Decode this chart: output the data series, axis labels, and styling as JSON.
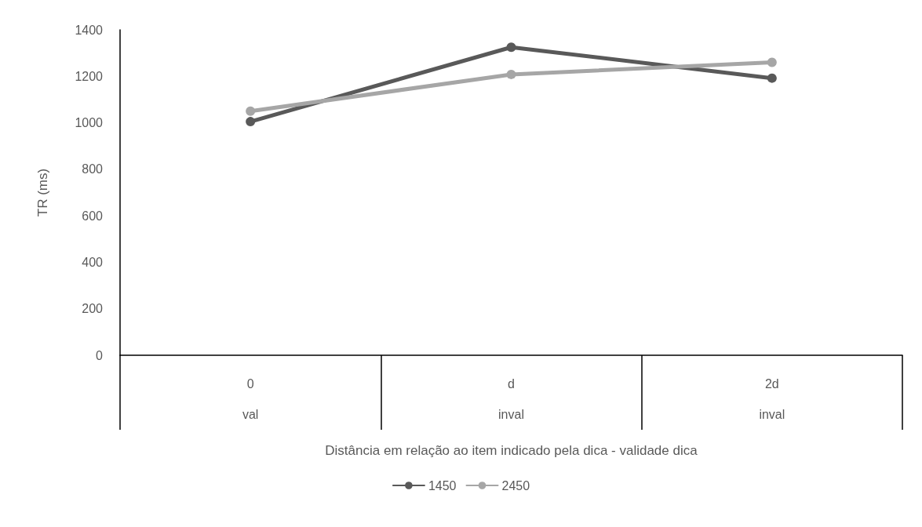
{
  "chart_data": {
    "type": "line",
    "xlabel": "Distância em relação ao item indicado pela dica - validade dica",
    "ylabel": "TR (ms)",
    "categories": [
      "0",
      "d",
      "2d"
    ],
    "series": [
      {
        "name": "1450",
        "color": "#595959",
        "values": [
          1005,
          1325,
          1192
        ]
      },
      {
        "name": "2450",
        "color": "#a6a6a6",
        "values": [
          1050,
          1208,
          1260
        ]
      }
    ],
    "annotations": [
      "val",
      "inval",
      "inval"
    ],
    "ylim": [
      0,
      1400
    ],
    "yticks": [
      0,
      200,
      400,
      600,
      800,
      1000,
      1200,
      1400
    ],
    "grid": false,
    "legend": "bottom",
    "marker": "circle",
    "line_style": "solid"
  }
}
